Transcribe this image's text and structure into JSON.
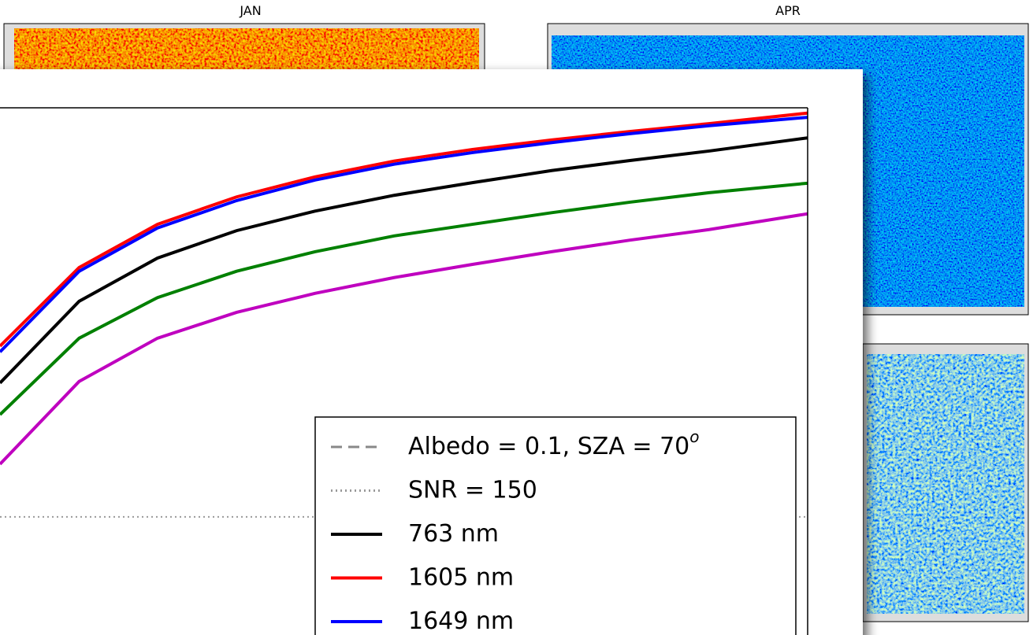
{
  "panels": [
    {
      "title": "JAN"
    },
    {
      "title": "APR"
    }
  ],
  "chart_data": {
    "type": "line",
    "x": [
      0,
      9.8,
      19.5,
      29.3,
      39.0,
      48.8,
      58.5,
      68.3,
      78.0,
      87.8,
      100
    ],
    "xlim": [
      0,
      100
    ],
    "ylim": [
      0,
      100
    ],
    "series": [
      {
        "name": "Albedo = 0.1, SZA = 70",
        "name_superscript": "o",
        "color": "#888888",
        "style": "dashed",
        "values": [
          null,
          null,
          null,
          null,
          null,
          null,
          null,
          null,
          null,
          null,
          null
        ]
      },
      {
        "name": "SNR = 150",
        "color": "#999999",
        "style": "dotted",
        "values": [
          22.4,
          22.4,
          22.4,
          22.4,
          22.4,
          22.4,
          22.4,
          22.4,
          22.4,
          22.4,
          22.4
        ]
      },
      {
        "name": "763 nm",
        "color": "#000000",
        "style": "solid",
        "values": [
          47.8,
          63.3,
          71.5,
          76.7,
          80.4,
          83.4,
          85.8,
          88.1,
          90.0,
          91.8,
          94.3
        ]
      },
      {
        "name": "1605 nm",
        "color": "#ff0000",
        "style": "solid",
        "values": [
          54.8,
          69.7,
          77.9,
          83.1,
          86.9,
          89.9,
          92.1,
          93.9,
          95.5,
          97.0,
          99.0
        ]
      },
      {
        "name": "1649 nm",
        "color": "#0000ff",
        "style": "solid",
        "values": [
          53.7,
          69.0,
          77.2,
          82.4,
          86.3,
          89.3,
          91.5,
          93.4,
          95.1,
          96.6,
          98.2
        ]
      },
      {
        "color": "#008000",
        "style": "solid",
        "values": [
          41.8,
          56.3,
          64.0,
          69.0,
          72.7,
          75.7,
          77.9,
          80.1,
          82.1,
          83.9,
          85.7
        ]
      },
      {
        "color": "#bf00bf",
        "style": "solid",
        "values": [
          32.4,
          48.1,
          56.3,
          61.2,
          64.8,
          67.8,
          70.3,
          72.7,
          74.9,
          76.9,
          79.9
        ]
      }
    ]
  }
}
